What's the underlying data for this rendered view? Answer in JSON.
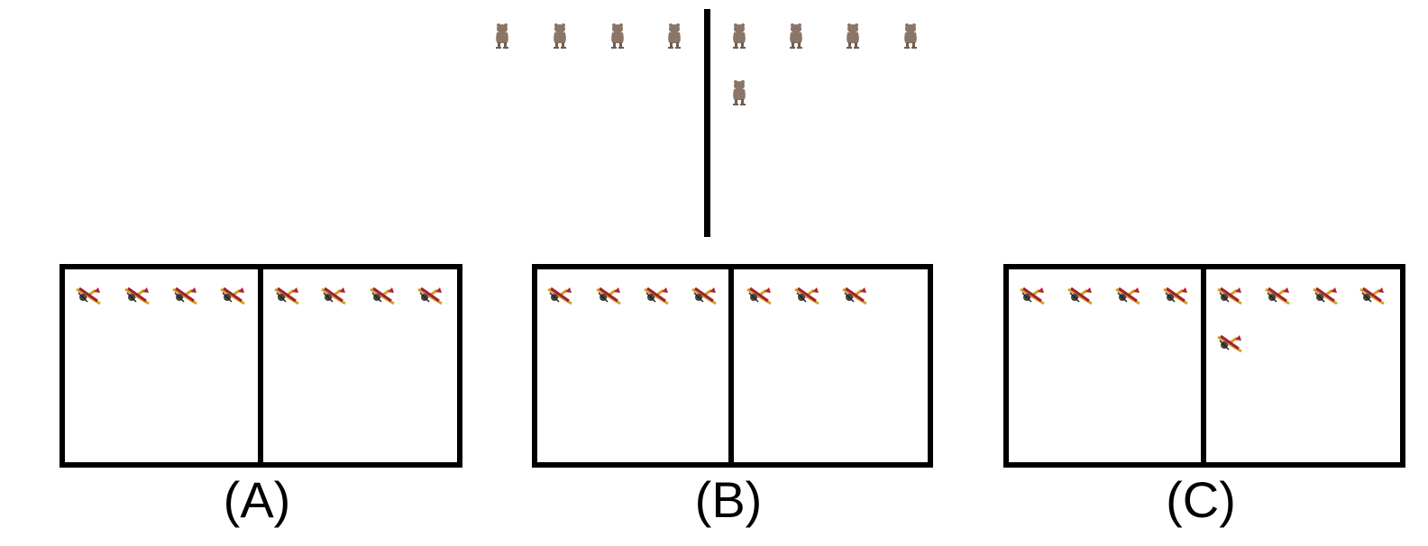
{
  "options": [
    {
      "label": "(A)"
    },
    {
      "label": "(B)"
    },
    {
      "label": "(C)"
    }
  ]
}
